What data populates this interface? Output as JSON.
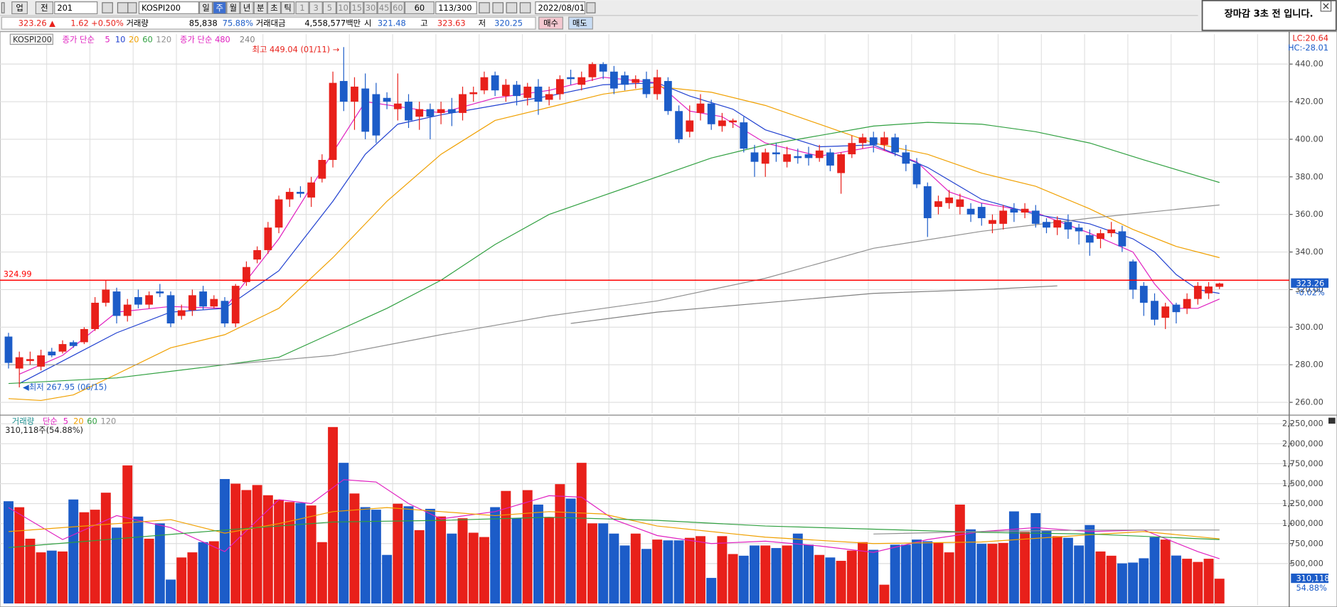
{
  "toolbar": {
    "row1": [
      "업",
      "전",
      "201",
      "KOSPI200",
      "일",
      "주",
      "월",
      "년",
      "분",
      "초",
      "틱",
      "1",
      "3",
      "5",
      "10",
      "15",
      "30",
      "45",
      "60",
      "60",
      "113/300",
      "2022/08/01"
    ],
    "row2": [
      "323.26 ▲",
      "1.62",
      "+0.50%",
      "거래량",
      "85,838",
      "75.88%",
      "거래대금",
      "4,558,577백만",
      "시",
      "321.48",
      "고",
      "323.63",
      "저",
      "320.25",
      "매수",
      "매도"
    ]
  },
  "notice": "장마감  3초 전 입니다.",
  "chart_data": [
    {
      "type": "candlestick",
      "title": "KOSPI200",
      "legend_prefixes": [
        "종가 단순",
        "종가 단순 480"
      ],
      "up_color": "#e8201a",
      "down_color": "#1c5cc8",
      "open": [
        295,
        278,
        282,
        279,
        287,
        287,
        292,
        292,
        299,
        313,
        319,
        306,
        316,
        312,
        319,
        317,
        306,
        309,
        319,
        311,
        314,
        302,
        324,
        336,
        341,
        353,
        368,
        372,
        369,
        379,
        389,
        431,
        420,
        427,
        424,
        422,
        416,
        420,
        412,
        416,
        414,
        416,
        414,
        424,
        426,
        434,
        423,
        429,
        422,
        428,
        421,
        424,
        433,
        429,
        433,
        440,
        436,
        434,
        430,
        432,
        424,
        431,
        415,
        404,
        414,
        419,
        407,
        409,
        409,
        393,
        387,
        393,
        388,
        391,
        392,
        390,
        393,
        382,
        392,
        398,
        401,
        397,
        401,
        393,
        387,
        375,
        364,
        366,
        364,
        363,
        364,
        355,
        355,
        363,
        361,
        362,
        356,
        353,
        356,
        353,
        349,
        347,
        350,
        351,
        335,
        322,
        314,
        305,
        312,
        310,
        315,
        318,
        321.48
      ],
      "high": [
        297,
        287,
        287,
        288,
        289,
        293,
        293,
        300,
        316,
        325,
        321,
        315,
        320,
        319,
        323,
        319,
        312,
        320,
        322,
        317,
        316,
        323,
        335,
        343,
        356,
        370,
        374,
        375,
        380,
        392,
        436,
        449.04,
        433,
        435,
        430,
        425,
        435,
        424,
        420,
        419,
        420,
        422,
        428,
        428,
        436,
        436,
        432,
        431,
        430,
        432,
        428,
        434,
        437,
        436,
        441,
        441,
        439,
        436,
        434,
        436,
        437,
        433,
        418,
        418,
        424,
        421,
        414,
        411,
        412,
        397,
        395,
        398,
        396,
        395,
        396,
        397,
        395,
        393,
        402,
        403,
        404,
        404,
        403,
        397,
        390,
        377,
        370,
        373,
        371,
        366,
        366,
        360,
        365,
        366,
        366,
        365,
        358,
        359,
        360,
        355,
        352,
        352,
        356,
        354,
        336,
        324,
        318,
        313,
        313,
        318,
        324,
        324,
        323.63
      ],
      "low": [
        278,
        267.95,
        280,
        277,
        284,
        286,
        289,
        291,
        298,
        311,
        302,
        303,
        310,
        310,
        316,
        300,
        304,
        306,
        309,
        310,
        300,
        300,
        322,
        334,
        339,
        350,
        364,
        369,
        364,
        377,
        385,
        415,
        405,
        400,
        398,
        416,
        410,
        406,
        405,
        400,
        408,
        407,
        410,
        420,
        424,
        423,
        420,
        418,
        418,
        413,
        418,
        421,
        429,
        426,
        431,
        432,
        424,
        426,
        427,
        422,
        421,
        413,
        398,
        401,
        410,
        405,
        404,
        406,
        393,
        380,
        380,
        388,
        385,
        387,
        386,
        388,
        383,
        371,
        390,
        395,
        393,
        394,
        391,
        383,
        374,
        348,
        360,
        363,
        360,
        356,
        354,
        350,
        352,
        356,
        358,
        353,
        350,
        349,
        347,
        344,
        338,
        342,
        348,
        340,
        315,
        306,
        301,
        299,
        302,
        307,
        312,
        315,
        320.25
      ],
      "close": [
        281,
        284,
        283,
        285,
        285,
        291,
        290,
        299,
        313,
        320,
        306,
        312,
        312,
        317,
        318,
        302,
        309,
        317,
        311,
        315,
        302,
        322,
        332,
        341,
        353,
        368,
        372,
        371,
        377,
        389,
        430,
        420,
        428,
        404,
        402,
        420,
        419,
        410,
        416,
        412,
        416,
        414,
        424,
        425,
        433,
        426,
        429,
        423,
        428,
        420,
        424,
        432,
        432,
        433,
        440,
        436,
        427,
        429,
        432,
        424,
        433,
        415,
        400,
        410,
        419,
        408,
        410,
        410,
        395,
        388,
        393,
        392,
        392,
        390,
        390,
        394,
        386,
        392,
        398,
        401,
        397,
        401,
        393,
        387,
        376,
        358,
        367,
        369,
        368,
        360,
        358,
        357,
        362,
        361,
        363,
        355,
        353,
        357,
        352,
        351,
        345,
        350,
        352,
        343,
        320,
        313,
        304,
        311,
        308,
        315,
        322,
        321.64,
        323.26
      ],
      "series": [
        {
          "name": "5",
          "color": "#e020c0",
          "x": [
            1,
            5,
            10,
            15,
            20,
            25,
            30,
            33,
            40,
            45,
            50,
            55,
            60,
            63,
            66,
            70,
            75,
            80,
            84,
            87,
            90,
            95,
            100,
            104,
            106,
            108,
            110,
            112
          ],
          "values": [
            275,
            285,
            308,
            311,
            310,
            347,
            393,
            420,
            414,
            422,
            426,
            433,
            430,
            415,
            412,
            398,
            391,
            396,
            388,
            372,
            366,
            361,
            350,
            340,
            323,
            310,
            310,
            315
          ]
        },
        {
          "name": "10",
          "color": "#2040d0",
          "x": [
            1,
            5,
            10,
            15,
            20,
            25,
            30,
            33,
            36,
            40,
            45,
            50,
            55,
            60,
            63,
            67,
            70,
            75,
            80,
            85,
            90,
            95,
            100,
            104,
            106,
            108,
            110,
            112
          ],
          "values": [
            270,
            282,
            297,
            308,
            310,
            330,
            367,
            392,
            408,
            413,
            418,
            423,
            429,
            430,
            423,
            416,
            405,
            396,
            397,
            385,
            368,
            360,
            355,
            347,
            340,
            328,
            320,
            318
          ]
        },
        {
          "name": "20",
          "color": "#f0a000",
          "x": [
            0,
            3,
            6,
            10,
            15,
            20,
            25,
            30,
            35,
            40,
            45,
            50,
            55,
            60,
            65,
            70,
            75,
            80,
            85,
            90,
            95,
            100,
            104,
            108,
            112
          ],
          "values": [
            262,
            261,
            264,
            275,
            289,
            296,
            310,
            337,
            367,
            392,
            410,
            417,
            424,
            428,
            425,
            418,
            408,
            398,
            392,
            382,
            375,
            363,
            352,
            343,
            337
          ]
        },
        {
          "name": "60",
          "color": "#30a040",
          "x": [
            0,
            10,
            20,
            25,
            30,
            35,
            40,
            45,
            50,
            55,
            60,
            65,
            70,
            75,
            80,
            85,
            90,
            95,
            100,
            105,
            112
          ],
          "values": [
            270,
            273,
            280,
            284,
            297,
            310,
            325,
            344,
            360,
            370,
            380,
            390,
            397,
            402,
            407,
            409,
            408,
            404,
            398,
            389,
            377
          ]
        },
        {
          "name": "120",
          "color": "#909090",
          "x": [
            0,
            20,
            30,
            40,
            50,
            60,
            70,
            80,
            90,
            100,
            112
          ],
          "values": [
            280,
            280,
            285,
            296,
            306,
            314,
            326,
            342,
            351,
            358,
            365
          ]
        },
        {
          "name": "240",
          "color": "#808080",
          "x": [
            52,
            60,
            70,
            80,
            90,
            97
          ],
          "values": [
            302,
            308,
            313,
            318,
            320,
            322
          ]
        }
      ],
      "ylim": [
        254.1,
        455.9
      ],
      "yticks": [
        {
          "value": 260,
          "label": "260.00"
        },
        {
          "value": 280,
          "label": "280.00"
        },
        {
          "value": 300,
          "label": "300.00"
        },
        {
          "value": 320,
          "label": "320.00"
        },
        {
          "value": 340,
          "label": "340.00"
        },
        {
          "value": 360,
          "label": "360.00"
        },
        {
          "value": 380,
          "label": "380.00"
        },
        {
          "value": 400,
          "label": "400.00"
        },
        {
          "value": 420,
          "label": "420.00"
        },
        {
          "value": 440,
          "label": "440.00"
        }
      ],
      "grid": true,
      "reference_line": {
        "value": 324.99,
        "color": "#ff0000"
      },
      "last": {
        "value": 323.26,
        "change": "-0.02%"
      },
      "annotations": {
        "high": "최고 449.04 (01/11) →",
        "low": "◀최저 267.95 (06/15)"
      },
      "corner_labels": [
        "LC:20.64",
        "HC:-28.01"
      ]
    },
    {
      "type": "bar",
      "title": "거래량",
      "legend_prefix": "단순",
      "summary": "310,118주(54.88%)",
      "values": [
        1280000,
        1205000,
        811000,
        640000,
        662000,
        651000,
        1302000,
        1142000,
        1174000,
        1387000,
        950000,
        1729000,
        1088000,
        811000,
        1003000,
        299000,
        576000,
        640000,
        768000,
        779000,
        1558000,
        1500000,
        1420000,
        1483000,
        1355000,
        1300000,
        1270000,
        1259000,
        1227000,
        768000,
        2209000,
        1761000,
        1377000,
        1206000,
        1174000,
        608000,
        1249000,
        1217000,
        918000,
        1185000,
        1089000,
        875000,
        1067000,
        886000,
        832000,
        1206000,
        1409000,
        1067000,
        1419000,
        1238000,
        1078000,
        1494000,
        1313000,
        1761000,
        1003000,
        1003000,
        875000,
        726000,
        875000,
        683000,
        800000,
        790000,
        790000,
        822000,
        843000,
        320000,
        843000,
        619000,
        598000,
        726000,
        726000,
        694000,
        726000,
        875000,
        736000,
        608000,
        576000,
        534000,
        662000,
        768000,
        672000,
        235000,
        736000,
        736000,
        800000,
        779000,
        758000,
        640000,
        1238000,
        928000,
        747000,
        747000,
        758000,
        1153000,
        896000,
        1131000,
        907000,
        843000,
        822000,
        726000,
        982000,
        651000,
        598000,
        502000,
        512000,
        566000,
        830000,
        800000,
        600000,
        560000,
        520000,
        560000,
        310118
      ],
      "series": [
        {
          "name": "5",
          "color": "#e020c0",
          "x": [
            0,
            5,
            10,
            15,
            20,
            25,
            28,
            31,
            34,
            37,
            40,
            45,
            50,
            53,
            56,
            60,
            65,
            70,
            75,
            80,
            85,
            90,
            95,
            100,
            105,
            110,
            112
          ],
          "values": [
            1200000,
            800000,
            1100000,
            950000,
            650000,
            1300000,
            1250000,
            1550000,
            1520000,
            1250000,
            1060000,
            1150000,
            1350000,
            1330000,
            1050000,
            850000,
            750000,
            780000,
            720000,
            640000,
            800000,
            900000,
            950000,
            900000,
            920000,
            650000,
            560000
          ]
        },
        {
          "name": "20",
          "color": "#f0a000",
          "x": [
            0,
            10,
            15,
            20,
            25,
            30,
            35,
            40,
            45,
            50,
            55,
            60,
            70,
            80,
            90,
            100,
            105,
            112
          ],
          "values": [
            900000,
            1000000,
            1050000,
            880000,
            1000000,
            1150000,
            1200000,
            1150000,
            1100000,
            1150000,
            1120000,
            970000,
            830000,
            750000,
            770000,
            860000,
            900000,
            810000
          ]
        },
        {
          "name": "60",
          "color": "#30a040",
          "x": [
            0,
            20,
            30,
            40,
            50,
            60,
            70,
            80,
            90,
            100,
            112
          ],
          "values": [
            700000,
            920000,
            1020000,
            1040000,
            1080000,
            1040000,
            970000,
            930000,
            890000,
            870000,
            800000
          ]
        },
        {
          "name": "120",
          "color": "#909090",
          "x": [
            80,
            90,
            100,
            112
          ],
          "values": [
            870000,
            900000,
            920000,
            920000
          ]
        }
      ],
      "ylim": [
        0,
        2326000
      ],
      "yticks": [
        {
          "value": 500000,
          "label": "500,000"
        },
        {
          "value": 750000,
          "label": "750,000"
        },
        {
          "value": 1000000,
          "label": "1,000,000"
        },
        {
          "value": 1250000,
          "label": "1,250,000"
        },
        {
          "value": 1500000,
          "label": "1,500,000"
        },
        {
          "value": 1750000,
          "label": "1,750,000"
        },
        {
          "value": 2000000,
          "label": "2,000,000"
        },
        {
          "value": 2250000,
          "label": "2,250,000"
        }
      ],
      "grid": true,
      "last": {
        "label": "310,118",
        "pct": "54.88%"
      }
    }
  ]
}
